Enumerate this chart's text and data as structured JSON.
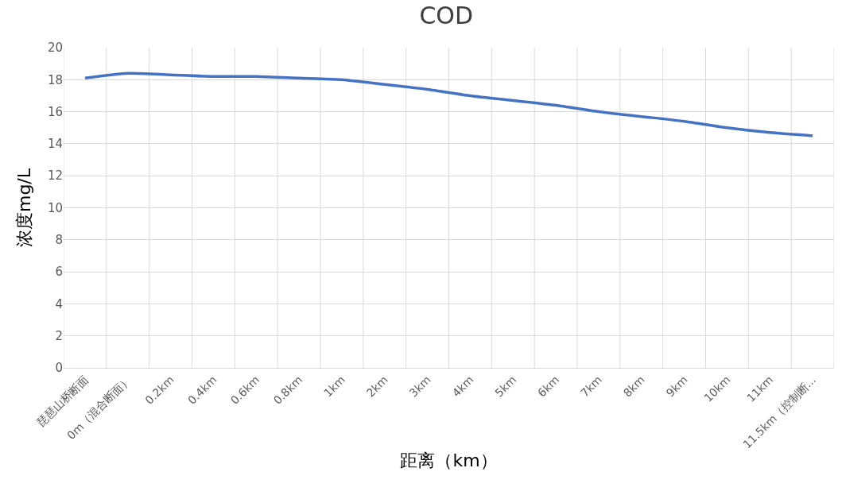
{
  "chart_data": {
    "type": "line",
    "title": "COD",
    "xlabel": "距离（km）",
    "ylabel": "浓度mg/L",
    "categories": [
      "琵琶山桥断面",
      "0m（混合断面）",
      "0.2km",
      "0.4km",
      "0.6km",
      "0.8km",
      "1km",
      "2km",
      "3km",
      "4km",
      "5km",
      "6km",
      "7km",
      "8km",
      "9km",
      "10km",
      "11km",
      "11.5km（控制断..."
    ],
    "series": [
      {
        "color": "#4472c4",
        "values": [
          18.1,
          18.4,
          18.3,
          18.2,
          18.2,
          18.1,
          18.0,
          17.7,
          17.4,
          17.0,
          16.7,
          16.4,
          16.0,
          15.7,
          15.4,
          15.0,
          14.7,
          14.5
        ]
      }
    ],
    "ylim": [
      0,
      20
    ],
    "yticks": [
      0,
      2,
      4,
      6,
      8,
      10,
      12,
      14,
      16,
      18,
      20
    ],
    "grid": true,
    "legend": false,
    "marker": "none",
    "line_style": "solid"
  }
}
